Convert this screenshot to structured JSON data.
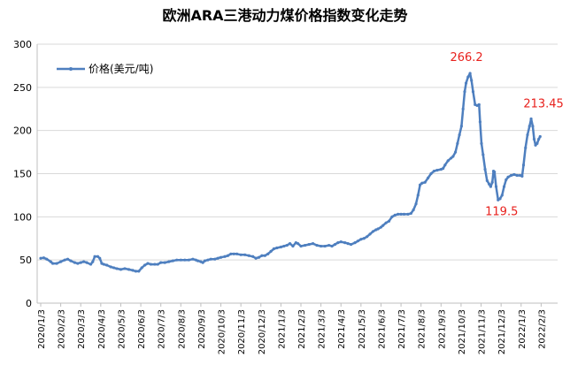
{
  "chart_data": {
    "type": "line",
    "title": "欧洲ARA三港动力煤价格指数变化走势",
    "xlabel": "",
    "ylabel": "",
    "ylim": [
      0,
      300
    ],
    "yticks": [
      "0",
      "50",
      "100",
      "150",
      "200",
      "250",
      "300"
    ],
    "grid": true,
    "legend_position": "top-left",
    "categories": [
      "2020/1/3",
      "2020/2/3",
      "2020/3/3",
      "2020/4/3",
      "2020/5/3",
      "2020/6/3",
      "2020/7/3",
      "2020/8/3",
      "2020/9/3",
      "2020/10/3",
      "2020/11/3",
      "2020/12/3",
      "2021/1/3",
      "2021/2/3",
      "2021/3/3",
      "2021/4/3",
      "2021/5/3",
      "2021/6/3",
      "2021/7/3",
      "2021/8/3",
      "2021/9/3",
      "2021/10/3",
      "2021/11/3",
      "2021/12/3",
      "2022/1/3",
      "2022/2/3"
    ],
    "series": [
      {
        "name": "价格(美元/吨)",
        "color": "#4e7fbf",
        "points": [
          [
            0,
            52
          ],
          [
            0.15,
            52.5
          ],
          [
            0.3,
            51
          ],
          [
            0.5,
            48
          ],
          [
            0.6,
            46
          ],
          [
            0.8,
            46
          ],
          [
            1,
            48
          ],
          [
            1.2,
            50
          ],
          [
            1.35,
            51
          ],
          [
            1.5,
            49
          ],
          [
            1.7,
            47
          ],
          [
            1.85,
            46
          ],
          [
            2,
            47
          ],
          [
            2.15,
            48
          ],
          [
            2.3,
            47
          ],
          [
            2.5,
            45
          ],
          [
            2.6,
            48
          ],
          [
            2.7,
            54
          ],
          [
            2.85,
            54
          ],
          [
            2.95,
            52
          ],
          [
            3.05,
            46
          ],
          [
            3.15,
            45
          ],
          [
            3.3,
            44
          ],
          [
            3.5,
            42
          ],
          [
            3.65,
            41
          ],
          [
            3.8,
            40
          ],
          [
            4,
            39
          ],
          [
            4.2,
            40
          ],
          [
            4.4,
            39
          ],
          [
            4.6,
            38
          ],
          [
            4.75,
            37
          ],
          [
            4.9,
            37
          ],
          [
            5.05,
            41
          ],
          [
            5.2,
            44
          ],
          [
            5.35,
            46
          ],
          [
            5.5,
            45
          ],
          [
            5.7,
            45
          ],
          [
            5.85,
            45
          ],
          [
            6,
            47
          ],
          [
            6.2,
            47
          ],
          [
            6.4,
            48
          ],
          [
            6.6,
            49
          ],
          [
            6.8,
            50
          ],
          [
            7,
            50
          ],
          [
            7.2,
            50
          ],
          [
            7.4,
            50
          ],
          [
            7.6,
            51
          ],
          [
            7.75,
            50
          ],
          [
            7.85,
            49
          ],
          [
            8,
            48
          ],
          [
            8.1,
            47
          ],
          [
            8.2,
            49
          ],
          [
            8.35,
            50
          ],
          [
            8.5,
            51
          ],
          [
            8.7,
            51
          ],
          [
            8.85,
            52
          ],
          [
            9,
            53
          ],
          [
            9.2,
            54
          ],
          [
            9.35,
            55
          ],
          [
            9.5,
            57
          ],
          [
            9.65,
            57
          ],
          [
            9.8,
            57
          ],
          [
            10,
            56
          ],
          [
            10.2,
            56
          ],
          [
            10.4,
            55
          ],
          [
            10.6,
            54
          ],
          [
            10.75,
            52
          ],
          [
            10.9,
            53
          ],
          [
            11.05,
            55
          ],
          [
            11.2,
            55
          ],
          [
            11.35,
            57
          ],
          [
            11.5,
            60
          ],
          [
            11.65,
            63
          ],
          [
            11.8,
            64
          ],
          [
            12,
            65
          ],
          [
            12.15,
            66
          ],
          [
            12.3,
            67
          ],
          [
            12.45,
            69
          ],
          [
            12.6,
            66
          ],
          [
            12.75,
            70
          ],
          [
            12.85,
            69
          ],
          [
            13,
            66
          ],
          [
            13.2,
            67
          ],
          [
            13.4,
            68
          ],
          [
            13.6,
            69
          ],
          [
            13.8,
            67
          ],
          [
            14,
            66
          ],
          [
            14.2,
            66
          ],
          [
            14.4,
            67
          ],
          [
            14.55,
            66
          ],
          [
            14.7,
            68
          ],
          [
            14.85,
            70
          ],
          [
            15,
            71
          ],
          [
            15.2,
            70
          ],
          [
            15.35,
            69
          ],
          [
            15.5,
            68
          ],
          [
            15.7,
            70
          ],
          [
            15.85,
            72
          ],
          [
            16,
            74
          ],
          [
            16.15,
            75
          ],
          [
            16.3,
            77
          ],
          [
            16.45,
            80
          ],
          [
            16.6,
            83
          ],
          [
            16.75,
            85
          ],
          [
            16.85,
            86
          ],
          [
            17,
            88
          ],
          [
            17.1,
            90
          ],
          [
            17.25,
            93
          ],
          [
            17.4,
            95
          ],
          [
            17.55,
            100
          ],
          [
            17.7,
            102
          ],
          [
            17.85,
            103
          ],
          [
            18,
            103
          ],
          [
            18.15,
            103
          ],
          [
            18.35,
            103
          ],
          [
            18.5,
            104
          ],
          [
            18.62,
            108
          ],
          [
            18.75,
            115
          ],
          [
            18.85,
            125
          ],
          [
            18.95,
            137
          ],
          [
            19.05,
            139
          ],
          [
            19.2,
            140
          ],
          [
            19.35,
            145
          ],
          [
            19.5,
            150
          ],
          [
            19.65,
            153
          ],
          [
            19.8,
            154
          ],
          [
            20,
            155
          ],
          [
            20.1,
            156
          ],
          [
            20.2,
            160
          ],
          [
            20.35,
            165
          ],
          [
            20.5,
            168
          ],
          [
            20.6,
            170
          ],
          [
            20.72,
            175
          ],
          [
            20.82,
            185
          ],
          [
            20.92,
            195
          ],
          [
            21.02,
            205
          ],
          [
            21.1,
            225
          ],
          [
            21.18,
            245
          ],
          [
            21.25,
            255
          ],
          [
            21.35,
            262
          ],
          [
            21.45,
            266.2
          ],
          [
            21.52,
            258
          ],
          [
            21.6,
            245
          ],
          [
            21.7,
            230
          ],
          [
            21.8,
            229
          ],
          [
            21.9,
            230
          ],
          [
            21.95,
            210
          ],
          [
            22.02,
            185
          ],
          [
            22.1,
            172
          ],
          [
            22.2,
            155
          ],
          [
            22.3,
            142
          ],
          [
            22.4,
            138
          ],
          [
            22.48,
            135
          ],
          [
            22.56,
            140
          ],
          [
            22.62,
            153
          ],
          [
            22.67,
            152
          ],
          [
            22.75,
            135
          ],
          [
            22.85,
            119.5
          ],
          [
            22.95,
            121
          ],
          [
            23.05,
            125
          ],
          [
            23.15,
            135
          ],
          [
            23.25,
            143
          ],
          [
            23.35,
            146
          ],
          [
            23.5,
            148
          ],
          [
            23.65,
            149
          ],
          [
            23.8,
            148
          ],
          [
            23.95,
            148
          ],
          [
            24.05,
            147
          ],
          [
            24.12,
            160
          ],
          [
            24.22,
            180
          ],
          [
            24.32,
            195
          ],
          [
            24.42,
            205
          ],
          [
            24.5,
            213.45
          ],
          [
            24.58,
            205
          ],
          [
            24.65,
            190
          ],
          [
            24.72,
            183
          ],
          [
            24.8,
            185
          ],
          [
            24.88,
            190
          ],
          [
            24.95,
            193
          ]
        ]
      }
    ],
    "annotations": [
      {
        "text": "266.2",
        "x": 21.45,
        "y": 266.2
      },
      {
        "text": "119.5",
        "x": 22.85,
        "y": 119.5
      },
      {
        "text": "213.45",
        "x": 24.5,
        "y": 213.45
      }
    ]
  }
}
